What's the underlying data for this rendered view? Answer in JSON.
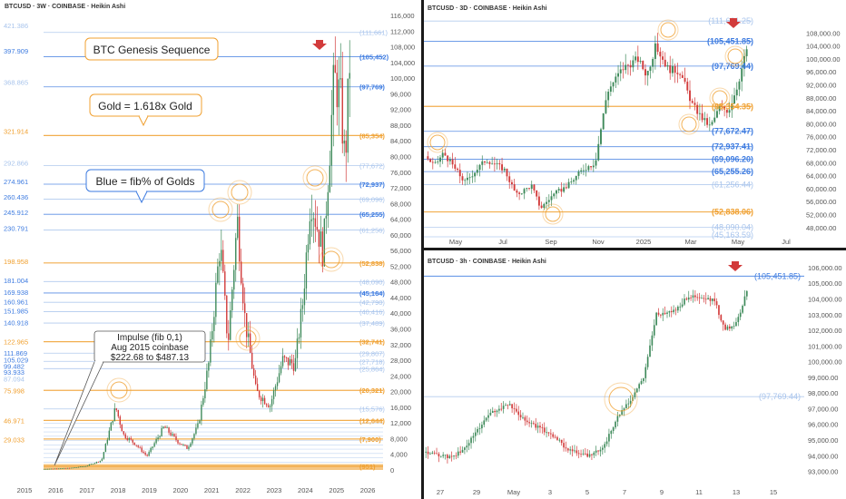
{
  "colors": {
    "blue": "#3d7be0",
    "gold": "#f0a030",
    "up": "#3e8a5a",
    "down": "#d23b3b",
    "pale": "#a8c4ec",
    "divider": "#1a1a1a"
  },
  "panels": {
    "left": {
      "title": "BTCUSD · 3W · COINBASE · Heikin Ashi",
      "callouts": {
        "genesis": "BTC Genesis Sequence",
        "gold": "Gold = 1.618x Gold",
        "blue": "Blue = fib% of Golds",
        "impulse_line1": "Impulse (fib 0,1)",
        "impulse_line2": "Aug 2015 coinbase",
        "impulse_line3": "$222.68 to $487.13"
      }
    },
    "top_right": {
      "title": "BTCUSD · 3D · COINBASE · Heikin Ashi"
    },
    "bottom_right": {
      "title": "BTCUSD · 3h · COINBASE · Heikin Ashi"
    }
  },
  "chart_data": [
    {
      "type": "candlestick",
      "title": "BTCUSD · 3W · COINBASE · Heikin Ashi",
      "x_ticks": [
        "2015",
        "2016",
        "2017",
        "2018",
        "2019",
        "2020",
        "2021",
        "2022",
        "2023",
        "2024",
        "2025",
        "2026"
      ],
      "y_ticks": [
        "116,000",
        "112,000",
        "108,000",
        "104,000",
        "100,000",
        "96,000",
        "92,000",
        "88,000",
        "84,000",
        "80,000",
        "76,000",
        "72,000",
        "68,000",
        "64,000",
        "60,000",
        "56,000",
        "52,000",
        "48,000",
        "44,000",
        "40,000",
        "36,000",
        "32,000",
        "28,000",
        "24,000",
        "20,000",
        "16,000",
        "12,000",
        "8,000",
        "4,000",
        "0"
      ],
      "ylim": [
        0,
        116000
      ],
      "left_fib_labels": [
        {
          "text": "421.386",
          "y": 113500,
          "color": "pale"
        },
        {
          "text": "397.909",
          "y": 107000,
          "color": "blue"
        },
        {
          "text": "368.865",
          "y": 99000,
          "color": "pale"
        },
        {
          "text": "321.914",
          "y": 86500,
          "color": "gold"
        },
        {
          "text": "292.866",
          "y": 78400,
          "color": "pale"
        },
        {
          "text": "274.961",
          "y": 73600,
          "color": "blue"
        },
        {
          "text": "260.436",
          "y": 69700,
          "color": "blue"
        },
        {
          "text": "245.912",
          "y": 65800,
          "color": "blue"
        },
        {
          "text": "230.791",
          "y": 61700,
          "color": "blue"
        },
        {
          "text": "198.958",
          "y": 53200,
          "color": "gold"
        },
        {
          "text": "181.004",
          "y": 48400,
          "color": "blue"
        },
        {
          "text": "169.938",
          "y": 45400,
          "color": "blue"
        },
        {
          "text": "160.961",
          "y": 43000,
          "color": "blue"
        },
        {
          "text": "151.985",
          "y": 40600,
          "color": "blue"
        },
        {
          "text": "140.918",
          "y": 37600,
          "color": "blue"
        },
        {
          "text": "122.965",
          "y": 32800,
          "color": "gold"
        },
        {
          "text": "111.869",
          "y": 29900,
          "color": "blue"
        },
        {
          "text": "105.029",
          "y": 28100,
          "color": "blue"
        },
        {
          "text": "99.482",
          "y": 26500,
          "color": "blue"
        },
        {
          "text": "93.933",
          "y": 25000,
          "color": "blue"
        },
        {
          "text": "87.094",
          "y": 23300,
          "color": "pale"
        },
        {
          "text": "75.998",
          "y": 20300,
          "color": "gold"
        },
        {
          "text": "46.971",
          "y": 12600,
          "color": "gold"
        },
        {
          "text": "29.033",
          "y": 7800,
          "color": "gold"
        }
      ],
      "right_fib_labels": [
        {
          "text": "(111,661)",
          "y": 111661,
          "color": "pale"
        },
        {
          "text": "(105,452)",
          "y": 105452,
          "color": "blue"
        },
        {
          "text": "(97,769)",
          "y": 97769,
          "color": "blue"
        },
        {
          "text": "(85,354)",
          "y": 85354,
          "color": "gold"
        },
        {
          "text": "(77,672)",
          "y": 77672,
          "color": "pale"
        },
        {
          "text": "(72,937)",
          "y": 72937,
          "color": "blue"
        },
        {
          "text": "(69,096)",
          "y": 69096,
          "color": "pale"
        },
        {
          "text": "(65,255)",
          "y": 65255,
          "color": "blue"
        },
        {
          "text": "(61,256)",
          "y": 61256,
          "color": "pale"
        },
        {
          "text": "(52,838)",
          "y": 52838,
          "color": "gold"
        },
        {
          "text": "(48,090)",
          "y": 48090,
          "color": "pale"
        },
        {
          "text": "(45,164)",
          "y": 45164,
          "color": "blue"
        },
        {
          "text": "(42,790)",
          "y": 42790,
          "color": "pale"
        },
        {
          "text": "(40,416)",
          "y": 40416,
          "color": "pale"
        },
        {
          "text": "(37,489)",
          "y": 37489,
          "color": "pale"
        },
        {
          "text": "(32,741)",
          "y": 32741,
          "color": "gold"
        },
        {
          "text": "(29,807)",
          "y": 29807,
          "color": "pale"
        },
        {
          "text": "(27,718)",
          "y": 27718,
          "color": "pale"
        },
        {
          "text": "(25,864)",
          "y": 25864,
          "color": "pale"
        },
        {
          "text": "(20,321)",
          "y": 20321,
          "color": "gold"
        },
        {
          "text": "(15,576)",
          "y": 15576,
          "color": "pale"
        },
        {
          "text": "(12,644)",
          "y": 12644,
          "color": "gold"
        },
        {
          "text": "(7,900)",
          "y": 7900,
          "color": "gold"
        },
        {
          "text": "(951)",
          "y": 951,
          "color": "gold"
        }
      ],
      "price_path": [
        [
          2015.6,
          250
        ],
        [
          2016.5,
          500
        ],
        [
          2017.0,
          1000
        ],
        [
          2017.5,
          2500
        ],
        [
          2017.95,
          16000
        ],
        [
          2018.2,
          9000
        ],
        [
          2018.6,
          6500
        ],
        [
          2018.95,
          3500
        ],
        [
          2019.5,
          11000
        ],
        [
          2019.95,
          7200
        ],
        [
          2020.25,
          5500
        ],
        [
          2020.6,
          11500
        ],
        [
          2020.95,
          28000
        ],
        [
          2021.3,
          58000
        ],
        [
          2021.55,
          32000
        ],
        [
          2021.85,
          64000
        ],
        [
          2022.1,
          38000
        ],
        [
          2022.45,
          20000
        ],
        [
          2022.9,
          16500
        ],
        [
          2023.3,
          28000
        ],
        [
          2023.7,
          27000
        ],
        [
          2023.95,
          43000
        ],
        [
          2024.2,
          70000
        ],
        [
          2024.6,
          55000
        ],
        [
          2024.95,
          100000
        ],
        [
          2025.15,
          95000
        ],
        [
          2025.3,
          78000
        ],
        [
          2025.45,
          104000
        ]
      ]
    },
    {
      "type": "candlestick",
      "title": "BTCUSD · 3D · COINBASE · Heikin Ashi",
      "x_ticks": [
        "May",
        "Jul",
        "Sep",
        "Nov",
        "2025",
        "Mar",
        "May",
        "Jul"
      ],
      "y_ticks": [
        "108,000.00",
        "104,000.00",
        "100,000.00",
        "96,000.00",
        "92,000.00",
        "88,000.00",
        "84,000.00",
        "80,000.00",
        "76,000.00",
        "72,000.00",
        "68,000.00",
        "64,000.00",
        "60,000.00",
        "56,000.00",
        "52,000.00",
        "48,000.00"
      ],
      "ylim": [
        46000,
        112000
      ],
      "fib_labels": [
        {
          "text": "(111,661.25)",
          "y": 111661,
          "color": "pale"
        },
        {
          "text": "(105,451.85)",
          "y": 105452,
          "color": "blue"
        },
        {
          "text": "(97,769.44)",
          "y": 97769,
          "color": "blue"
        },
        {
          "text": "(85,354.35)",
          "y": 85354,
          "color": "gold"
        },
        {
          "text": "(77,672.47)",
          "y": 77672,
          "color": "blue"
        },
        {
          "text": "(72,937.41)",
          "y": 72937,
          "color": "blue"
        },
        {
          "text": "(69,096.20)",
          "y": 69096,
          "color": "blue"
        },
        {
          "text": "(65,255.26)",
          "y": 65255,
          "color": "blue"
        },
        {
          "text": "(61,256.44)",
          "y": 61256,
          "color": "pale"
        },
        {
          "text": "(52,838.06)",
          "y": 52838,
          "color": "gold"
        },
        {
          "text": "(48,090.04)",
          "y": 48090,
          "color": "pale"
        },
        {
          "text": "(45,163.59)",
          "y": 45164,
          "color": "pale"
        }
      ],
      "price_path": [
        [
          0.0,
          70000
        ],
        [
          0.03,
          67000
        ],
        [
          0.06,
          71000
        ],
        [
          0.13,
          62000
        ],
        [
          0.2,
          69000
        ],
        [
          0.26,
          66000
        ],
        [
          0.3,
          58000
        ],
        [
          0.35,
          61000
        ],
        [
          0.38,
          54000
        ],
        [
          0.42,
          58000
        ],
        [
          0.47,
          61000
        ],
        [
          0.52,
          66000
        ],
        [
          0.56,
          68000
        ],
        [
          0.6,
          90000
        ],
        [
          0.65,
          97000
        ],
        [
          0.7,
          100000
        ],
        [
          0.73,
          95000
        ],
        [
          0.76,
          104000
        ],
        [
          0.8,
          97000
        ],
        [
          0.84,
          96000
        ],
        [
          0.88,
          86000
        ],
        [
          0.91,
          82000
        ],
        [
          0.94,
          79000
        ],
        [
          0.97,
          85000
        ],
        [
          1.0,
          84000
        ],
        [
          1.03,
          92000
        ],
        [
          1.06,
          103000
        ]
      ]
    },
    {
      "type": "candlestick",
      "title": "BTCUSD · 3h · COINBASE · Heikin Ashi",
      "x_ticks": [
        "27",
        "29",
        "May",
        "3",
        "5",
        "7",
        "9",
        "11",
        "13",
        "15"
      ],
      "y_ticks": [
        "106,000.00",
        "105,000.00",
        "104,000.00",
        "103,000.00",
        "102,000.00",
        "101,000.00",
        "100,000.00",
        "99,000.00",
        "98,000.00",
        "97,000.00",
        "96,000.00",
        "95,000.00",
        "94,000.00",
        "93,000.00"
      ],
      "ylim": [
        92800,
        106400
      ],
      "fib_labels": [
        {
          "text": "(105,451.85)",
          "y": 105452,
          "color": "blue"
        },
        {
          "text": "(97,769.44)",
          "y": 97769,
          "color": "pale"
        }
      ],
      "price_path": [
        [
          0.0,
          94200
        ],
        [
          0.08,
          93900
        ],
        [
          0.12,
          94300
        ],
        [
          0.2,
          96600
        ],
        [
          0.26,
          97300
        ],
        [
          0.32,
          96200
        ],
        [
          0.4,
          95300
        ],
        [
          0.44,
          94500
        ],
        [
          0.48,
          94100
        ],
        [
          0.52,
          94000
        ],
        [
          0.56,
          94700
        ],
        [
          0.6,
          96500
        ],
        [
          0.64,
          97500
        ],
        [
          0.68,
          99000
        ],
        [
          0.72,
          103000
        ],
        [
          0.78,
          103300
        ],
        [
          0.82,
          104200
        ],
        [
          0.86,
          104000
        ],
        [
          0.9,
          103900
        ],
        [
          0.93,
          102100
        ],
        [
          0.96,
          102300
        ],
        [
          0.98,
          103200
        ],
        [
          1.0,
          104500
        ]
      ]
    }
  ]
}
